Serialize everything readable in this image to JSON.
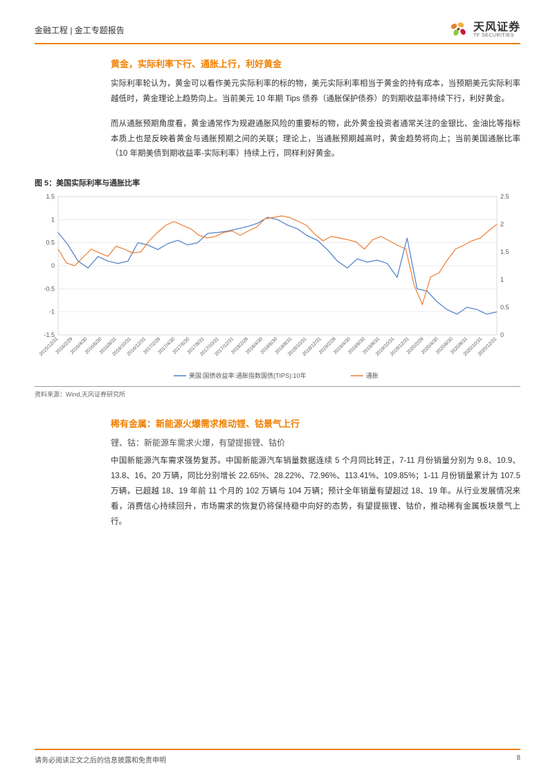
{
  "header": {
    "breadcrumb": "金融工程 | 金工专题报告",
    "logo_cn": "天风证券",
    "logo_en": "TF SECURITIES"
  },
  "section1": {
    "title": "黄金，实际利率下行、通胀上行，利好黄金",
    "p1": "实际利率轮认为，黄金可以看作美元实际利率的标的物，美元实际利率相当于黄金的持有成本，当预期美元实际利率越低时，黄金理论上趋势向上。当前美元 10 年期 Tips 债券（通胀保护债券）的到期收益率持续下行，利好黄金。",
    "p2": "而从通胀预期角度看，黄金通常作为规避通胀风险的重要标的物，此外黄金投资者通常关注的金银比、金油比等指标本质上也是反映着黄金与通胀预期之间的关联；理论上，当通胀预期越高时，黄金趋势将向上；当前美国通胀比率（10 年期美债到期收益率-实际利率）持续上行，同样利好黄金。"
  },
  "figure5": {
    "caption": "图 5：美国实际利率与通胀比率",
    "source": "资料来源：Wind,天风证券研究所",
    "chart": {
      "type": "line",
      "background_color": "#ffffff",
      "grid_color": "#d9d9d9",
      "y1_label_color": "#595959",
      "y1_lim": [
        -1.5,
        1.5
      ],
      "y1_ticks": [
        -1.5,
        -1,
        -0.5,
        0,
        0.5,
        1,
        1.5
      ],
      "y2_lim": [
        0,
        2.5
      ],
      "y2_ticks": [
        0,
        0.5,
        1,
        1.5,
        2,
        2.5
      ],
      "x_labels": [
        "2015/12/31",
        "2016/2/29",
        "2016/4/30",
        "2016/6/30",
        "2016/8/31",
        "2016/10/31",
        "2016/12/31",
        "2017/2/28",
        "2017/4/30",
        "2017/6/30",
        "2017/8/31",
        "2017/10/31",
        "2017/12/31",
        "2018/2/28",
        "2018/4/30",
        "2018/6/30",
        "2018/8/31",
        "2018/10/31",
        "2018/12/31",
        "2019/2/28",
        "2019/4/30",
        "2019/6/30",
        "2019/8/31",
        "2019/10/31",
        "2019/12/31",
        "2020/2/29",
        "2020/4/30",
        "2020/6/30",
        "2020/8/31",
        "2020/10/31",
        "2020/12/31"
      ],
      "x_label_fontsize": 7,
      "x_label_rotation": -45,
      "tick_fontsize": 9,
      "series": [
        {
          "name": "美国:国债收益率:通胀指数国债(TIPS):10年",
          "color": "#4a7ec9",
          "line_width": 1.2,
          "values": [
            0.72,
            0.45,
            0.1,
            -0.05,
            0.2,
            0.1,
            0.05,
            0.1,
            0.5,
            0.45,
            0.35,
            0.48,
            0.55,
            0.45,
            0.5,
            0.7,
            0.72,
            0.75,
            0.8,
            0.85,
            0.92,
            1.05,
            1.0,
            0.88,
            0.8,
            0.65,
            0.55,
            0.35,
            0.1,
            -0.05,
            0.15,
            0.08,
            0.12,
            0.05,
            -0.25,
            0.6,
            -0.5,
            -0.55,
            -0.78,
            -0.95,
            -1.05,
            -0.9,
            -0.95,
            -1.05,
            -1.0
          ]
        },
        {
          "name": "通胀",
          "color": "#ed7d31",
          "line_width": 1.2,
          "values": [
            1.55,
            1.3,
            1.25,
            1.4,
            1.55,
            1.48,
            1.42,
            1.6,
            1.55,
            1.48,
            1.5,
            1.7,
            1.85,
            1.98,
            2.05,
            1.98,
            1.92,
            1.8,
            1.75,
            1.78,
            1.85,
            1.88,
            1.8,
            1.88,
            1.95,
            2.1,
            2.12,
            2.15,
            2.12,
            2.05,
            1.98,
            1.82,
            1.7,
            1.78,
            1.75,
            1.72,
            1.68,
            1.55,
            1.72,
            1.78,
            1.7,
            1.62,
            1.55,
            0.9,
            0.55,
            1.05,
            1.12,
            1.35,
            1.55,
            1.62,
            1.7,
            1.75,
            1.88,
            2.0
          ]
        }
      ],
      "legend": {
        "position": "bottom-center",
        "fontsize": 9,
        "items": [
          {
            "label": "美国:国债收益率:通胀指数国债(TIPS):10年",
            "color": "#4a7ec9"
          },
          {
            "label": "通胀",
            "color": "#ed7d31"
          }
        ]
      }
    }
  },
  "section2": {
    "title": "稀有金属：新能源火爆需求推动锂、钴景气上行",
    "subtitle": "锂、钴：新能源车需求火爆，有望提振锂、钴价",
    "p1": "中国新能源汽车需求强势复苏。中国新能源汽车销量数据连续 5 个月同比转正，7-11 月份销量分别为 9.8、10.9、13.8、16、20 万辆，同比分别增长 22.65%、28.22%、72.96%、113.41%、109.85%；1-11 月份销量累计为 107.5 万辆，已超越 18、19 年前 11 个月的 102 万辆与 104 万辆；预计全年销量有望超过 18、19 年。从行业发展情况来看，消费信心持续回升，市场需求的恢复仍将保持稳中向好的态势，有望提振锂、钴价，推动稀有金属板块景气上行。"
  },
  "footer": {
    "disclaimer": "请务必阅读正文之后的信息披露和免责申明",
    "page": "8"
  }
}
